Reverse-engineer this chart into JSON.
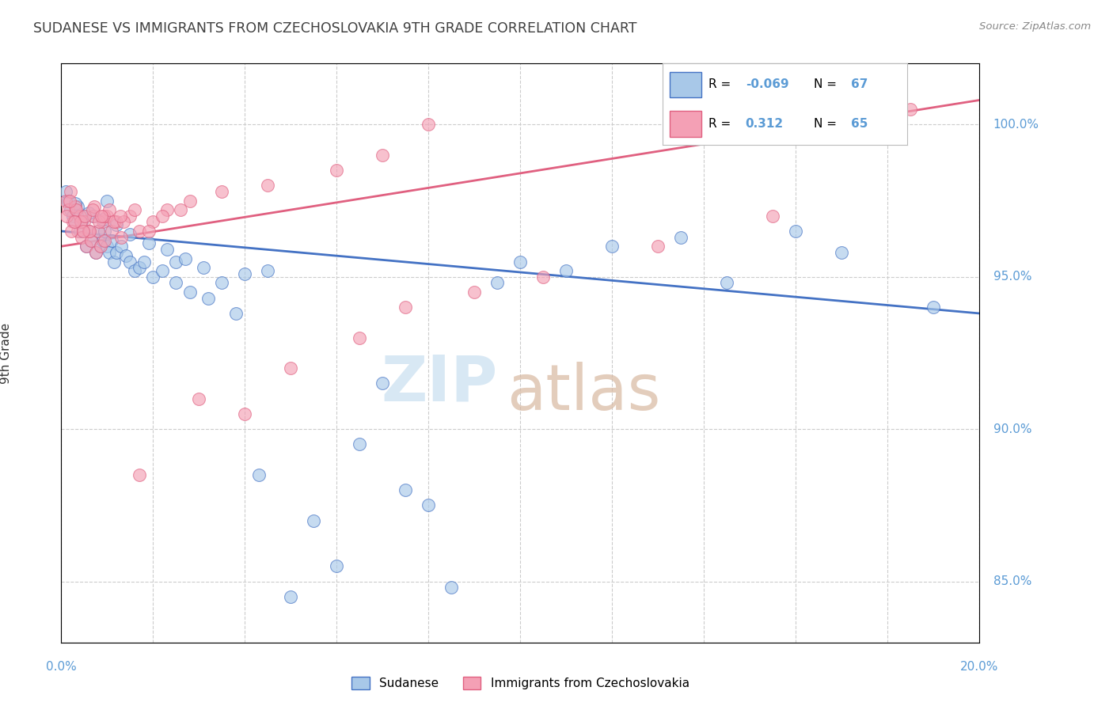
{
  "title": "SUDANESE VS IMMIGRANTS FROM CZECHOSLOVAKIA 9TH GRADE CORRELATION CHART",
  "source": "Source: ZipAtlas.com",
  "ylabel": "9th Grade",
  "xlim": [
    0.0,
    20.0
  ],
  "ylim": [
    83.0,
    102.0
  ],
  "ytick_vals": [
    85.0,
    90.0,
    95.0,
    100.0
  ],
  "blue_scatter_x": [
    0.1,
    0.15,
    0.2,
    0.25,
    0.3,
    0.35,
    0.4,
    0.45,
    0.5,
    0.55,
    0.6,
    0.65,
    0.7,
    0.75,
    0.8,
    0.85,
    0.9,
    0.95,
    1.0,
    1.05,
    1.1,
    1.15,
    1.2,
    1.3,
    1.4,
    1.5,
    1.6,
    1.7,
    1.8,
    2.0,
    2.2,
    2.5,
    2.8,
    3.2,
    3.8,
    4.3,
    5.0,
    6.0,
    7.0,
    8.0,
    9.5,
    11.0,
    13.5,
    16.0,
    1.0,
    2.5,
    3.5,
    4.5,
    5.5,
    6.5,
    7.5,
    8.5,
    10.0,
    12.0,
    14.5,
    17.0,
    19.0,
    0.3,
    0.6,
    0.9,
    1.2,
    1.5,
    1.9,
    2.3,
    2.7,
    3.1,
    4.0
  ],
  "blue_scatter_y": [
    97.8,
    97.5,
    97.2,
    97.0,
    96.8,
    97.3,
    96.5,
    96.8,
    97.0,
    96.0,
    96.5,
    96.2,
    97.0,
    95.8,
    96.5,
    96.0,
    96.2,
    96.5,
    96.0,
    95.8,
    96.2,
    95.5,
    95.8,
    96.0,
    95.7,
    95.5,
    95.2,
    95.3,
    95.5,
    95.0,
    95.2,
    94.8,
    94.5,
    94.3,
    93.8,
    88.5,
    84.5,
    85.5,
    91.5,
    87.5,
    94.8,
    95.2,
    96.3,
    96.5,
    97.5,
    95.5,
    94.8,
    95.2,
    87.0,
    89.5,
    88.0,
    84.8,
    95.5,
    96.0,
    94.8,
    95.8,
    94.0,
    97.4,
    97.1,
    96.9,
    96.7,
    96.4,
    96.1,
    95.9,
    95.6,
    95.3,
    95.1
  ],
  "pink_scatter_x": [
    0.1,
    0.15,
    0.2,
    0.25,
    0.3,
    0.35,
    0.4,
    0.45,
    0.5,
    0.55,
    0.6,
    0.65,
    0.7,
    0.75,
    0.8,
    0.85,
    0.9,
    0.95,
    1.0,
    1.1,
    1.2,
    1.3,
    1.5,
    1.7,
    2.0,
    2.3,
    2.8,
    3.5,
    4.5,
    6.0,
    7.0,
    8.0,
    0.12,
    0.22,
    0.32,
    0.42,
    0.52,
    0.62,
    0.72,
    0.82,
    0.92,
    1.05,
    1.15,
    1.35,
    1.6,
    1.9,
    2.2,
    2.6,
    3.0,
    4.0,
    5.0,
    6.5,
    7.5,
    9.0,
    10.5,
    13.0,
    15.5,
    18.5,
    0.18,
    0.28,
    0.48,
    0.68,
    0.88,
    1.28,
    1.7
  ],
  "pink_scatter_y": [
    97.5,
    97.2,
    97.8,
    96.8,
    97.3,
    96.5,
    97.0,
    96.3,
    96.8,
    96.0,
    96.5,
    96.2,
    97.0,
    95.8,
    96.5,
    96.0,
    96.8,
    96.2,
    97.0,
    96.5,
    96.8,
    96.3,
    97.0,
    96.5,
    96.8,
    97.2,
    97.5,
    97.8,
    98.0,
    98.5,
    99.0,
    100.0,
    97.0,
    96.5,
    97.2,
    96.8,
    97.0,
    96.5,
    97.3,
    96.8,
    97.0,
    97.2,
    96.8,
    96.8,
    97.2,
    96.5,
    97.0,
    97.2,
    91.0,
    90.5,
    92.0,
    93.0,
    94.0,
    94.5,
    95.0,
    96.0,
    97.0,
    100.5,
    97.5,
    96.8,
    96.5,
    97.2,
    97.0,
    97.0,
    88.5
  ],
  "blue_line_x": [
    0.0,
    20.0
  ],
  "blue_line_y": [
    96.5,
    93.8
  ],
  "pink_line_x": [
    0.0,
    20.0
  ],
  "pink_line_y": [
    96.0,
    100.8
  ],
  "blue_color": "#a8c8e8",
  "pink_color": "#f4a0b5",
  "blue_line_color": "#4472c4",
  "pink_line_color": "#e06080",
  "background_color": "#ffffff",
  "title_color": "#404040",
  "axis_label_color": "#5b9bd5",
  "watermark_zip": "ZIP",
  "watermark_atlas": "atlas",
  "watermark_color_zip": "#c8dff0",
  "watermark_color_atlas": "#d8b8a0",
  "legend_r1": "-0.069",
  "legend_n1": "67",
  "legend_r2": "0.312",
  "legend_n2": "65"
}
